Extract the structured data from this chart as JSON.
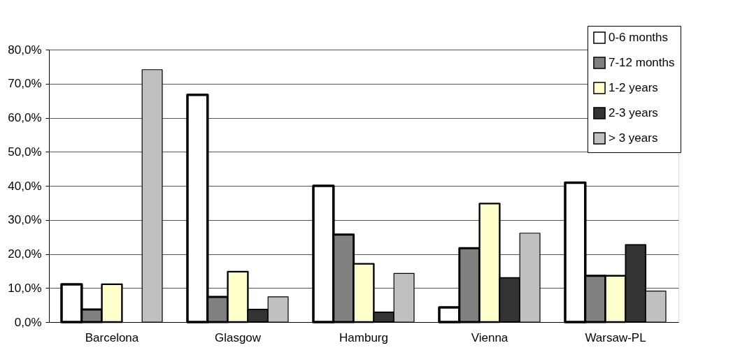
{
  "chart_data": {
    "type": "bar",
    "categories": [
      "Barcelona",
      "Glasgow",
      "Hamburg",
      "Vienna",
      "Warsaw-PL"
    ],
    "series": [
      {
        "name": "0-6 months",
        "color": "#ffffff",
        "values": [
          11.1,
          66.7,
          40.0,
          4.3,
          40.9
        ]
      },
      {
        "name": "7-12 months",
        "color": "#808080",
        "values": [
          3.7,
          7.4,
          25.7,
          21.7,
          13.6
        ]
      },
      {
        "name": "1-2 years",
        "color": "#ffffcc",
        "values": [
          11.1,
          14.8,
          17.1,
          34.8,
          13.6
        ]
      },
      {
        "name": "2-3 years",
        "color": "#333333",
        "values": [
          null,
          3.7,
          2.9,
          13.0,
          22.7
        ]
      },
      {
        "name": "> 3 years",
        "color": "#c0c0c0",
        "values": [
          74.1,
          7.4,
          14.3,
          26.1,
          9.1
        ]
      }
    ],
    "ylim": [
      0,
      80
    ],
    "yticks": [
      {
        "value": 0,
        "label": "0,0%"
      },
      {
        "value": 10,
        "label": "10,0%"
      },
      {
        "value": 20,
        "label": "20,0%"
      },
      {
        "value": 30,
        "label": "30,0%"
      },
      {
        "value": 40,
        "label": "40,0%"
      },
      {
        "value": 50,
        "label": "50,0%"
      },
      {
        "value": 60,
        "label": "60,0%"
      },
      {
        "value": 70,
        "label": "70,0%"
      },
      {
        "value": 80,
        "label": "80,0%"
      }
    ],
    "grid": "y",
    "legend": "top right"
  }
}
